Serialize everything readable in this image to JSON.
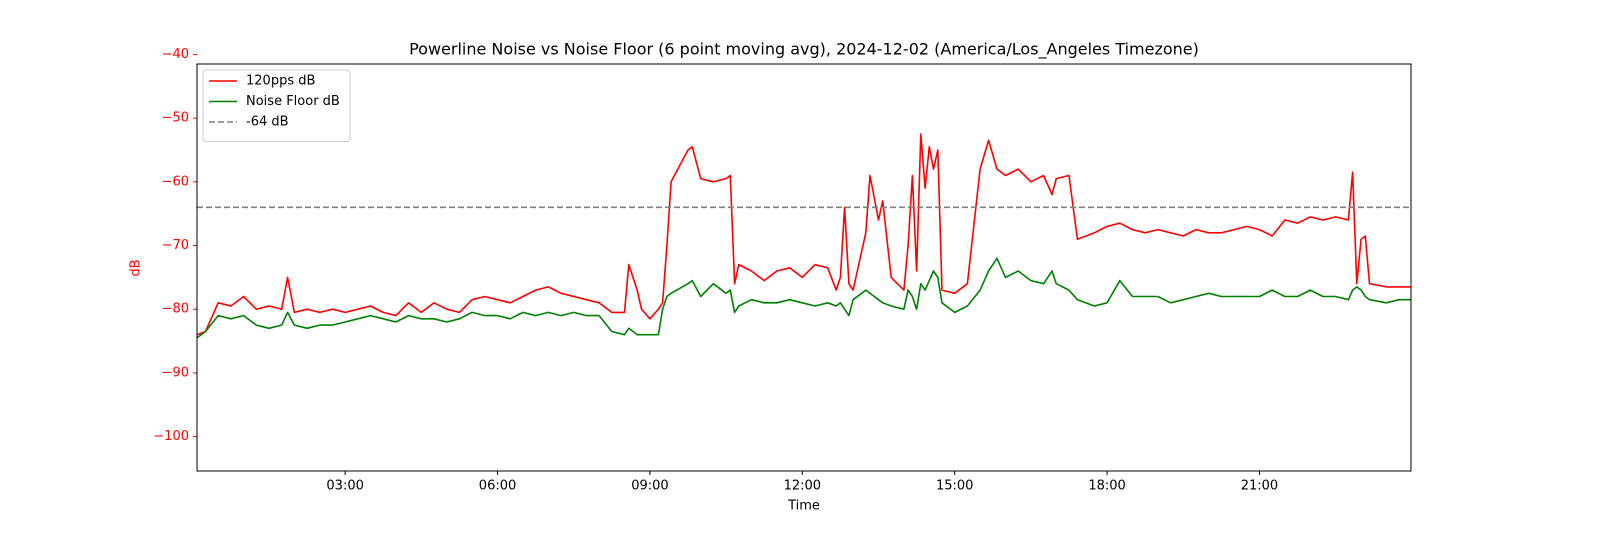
{
  "chart_data": {
    "type": "line",
    "title": "Powerline Noise vs Noise Floor (6 point moving avg), 2024-12-02 (America/Los_Angeles Timezone)",
    "xlabel": "Time",
    "ylabel": "dB",
    "ylabel_color": "#ff0000",
    "x": [
      "00:05",
      "00:15",
      "00:30",
      "00:45",
      "01:00",
      "01:15",
      "01:30",
      "01:45",
      "01:52",
      "02:00",
      "02:15",
      "02:30",
      "02:45",
      "03:00",
      "03:15",
      "03:30",
      "03:45",
      "04:00",
      "04:15",
      "04:30",
      "04:45",
      "05:00",
      "05:15",
      "05:30",
      "05:45",
      "06:00",
      "06:15",
      "06:30",
      "06:45",
      "07:00",
      "07:15",
      "07:30",
      "07:45",
      "08:00",
      "08:15",
      "08:30",
      "08:35",
      "08:45",
      "08:50",
      "09:00",
      "09:10",
      "09:15",
      "09:20",
      "09:25",
      "09:45",
      "09:50",
      "10:00",
      "10:15",
      "10:30",
      "10:35",
      "10:40",
      "10:45",
      "11:00",
      "11:15",
      "11:30",
      "11:45",
      "12:00",
      "12:15",
      "12:30",
      "12:40",
      "12:45",
      "12:50",
      "12:55",
      "13:00",
      "13:15",
      "13:20",
      "13:30",
      "13:35",
      "13:45",
      "14:00",
      "14:05",
      "14:10",
      "14:15",
      "14:20",
      "14:25",
      "14:30",
      "14:35",
      "14:40",
      "14:45",
      "15:00",
      "15:15",
      "15:30",
      "15:40",
      "15:50",
      "16:00",
      "16:15",
      "16:30",
      "16:45",
      "16:55",
      "17:00",
      "17:15",
      "17:25",
      "17:45",
      "18:00",
      "18:15",
      "18:30",
      "18:45",
      "19:00",
      "19:15",
      "19:30",
      "19:45",
      "20:00",
      "20:15",
      "20:30",
      "20:45",
      "21:00",
      "21:15",
      "21:30",
      "21:45",
      "22:00",
      "22:15",
      "22:30",
      "22:45",
      "22:50",
      "22:55",
      "23:00",
      "23:05",
      "23:10",
      "23:30",
      "23:45",
      "23:59"
    ],
    "series": [
      {
        "name": "120pps dB",
        "color": "#ff0000",
        "values": [
          -84,
          -83.5,
          -79,
          -79.5,
          -78,
          -80,
          -79.5,
          -80,
          -75,
          -80.5,
          -80,
          -80.5,
          -80,
          -80.5,
          -80,
          -79.5,
          -80.5,
          -81,
          -79,
          -80.5,
          -79,
          -80,
          -80.5,
          -78.5,
          -78,
          -78.5,
          -79,
          -78,
          -77,
          -76.5,
          -77.5,
          -78,
          -78.5,
          -79,
          -80.5,
          -80.5,
          -73,
          -77,
          -80,
          -81.5,
          -80,
          -79,
          -70,
          -60,
          -55,
          -54.5,
          -59.5,
          -60,
          -59.5,
          -59,
          -76,
          -73,
          -74,
          -75.5,
          -74,
          -73.5,
          -75,
          -73,
          -73.5,
          -77,
          -75,
          -64,
          -76,
          -77,
          -68,
          -59,
          -66,
          -63,
          -75,
          -77,
          -70,
          -59,
          -74,
          -52.5,
          -61,
          -54.5,
          -58,
          -55,
          -77,
          -77.5,
          -76,
          -58,
          -53.5,
          -58,
          -59,
          -58,
          -60,
          -59,
          -62,
          -59.5,
          -59,
          -69,
          -68,
          -67,
          -66.5,
          -67.5,
          -68,
          -67.5,
          -68,
          -68.5,
          -67.5,
          -68,
          -68,
          -67.5,
          -67,
          -67.5,
          -68.5,
          -66,
          -66.5,
          -65.5,
          -66,
          -65.5,
          -66,
          -58.5,
          -76,
          -69,
          -68.5,
          -76,
          -76.5,
          -76.5,
          -76.5
        ]
      },
      {
        "name": "Noise Floor dB",
        "color": "#008000",
        "values": [
          -84.5,
          -83.5,
          -81,
          -81.5,
          -81,
          -82.5,
          -83,
          -82.5,
          -80.5,
          -82.5,
          -83,
          -82.5,
          -82.5,
          -82,
          -81.5,
          -81,
          -81.5,
          -82,
          -81,
          -81.5,
          -81.5,
          -82,
          -81.5,
          -80.5,
          -81,
          -81,
          -81.5,
          -80.5,
          -81,
          -80.5,
          -81,
          -80.5,
          -81,
          -81,
          -83.5,
          -84,
          -83,
          -84,
          -84,
          -84,
          -84,
          -80,
          -78,
          -77.5,
          -76,
          -75.5,
          -78,
          -76,
          -77.5,
          -77,
          -80.5,
          -79.5,
          -78.5,
          -79,
          -79,
          -78.5,
          -79,
          -79.5,
          -79,
          -79.5,
          -79,
          -80,
          -81,
          -78.5,
          -77,
          -77.5,
          -78.5,
          -79,
          -79.5,
          -80,
          -77,
          -78,
          -80,
          -76,
          -77,
          -75.5,
          -74,
          -75,
          -79,
          -80.5,
          -79.5,
          -77,
          -74,
          -72,
          -75,
          -74,
          -75.5,
          -76,
          -74,
          -76,
          -77,
          -78.5,
          -79.5,
          -79,
          -75.5,
          -78,
          -78,
          -78,
          -79,
          -78.5,
          -78,
          -77.5,
          -78,
          -78,
          -78,
          -78,
          -77,
          -78,
          -78,
          -77,
          -78,
          -78,
          -78.5,
          -77,
          -76.5,
          -77,
          -78,
          -78.5,
          -79,
          -78.5,
          -78.5
        ]
      }
    ],
    "hline": {
      "name": "-64 dB",
      "value": -64,
      "color": "#808080"
    },
    "xlim": [
      "00:05",
      "23:59"
    ],
    "xticks": [
      "03:00",
      "06:00",
      "09:00",
      "12:00",
      "15:00",
      "18:00",
      "21:00"
    ],
    "ylim": [
      -105.4,
      -41.5
    ],
    "yticks": [
      {
        "value": -100,
        "label": "−100"
      },
      {
        "value": -90,
        "label": "−90"
      },
      {
        "value": -80,
        "label": "−80"
      },
      {
        "value": -70,
        "label": "−70"
      },
      {
        "value": -60,
        "label": "−60"
      },
      {
        "value": -50,
        "label": "−50"
      },
      {
        "value": -40,
        "label": "−40"
      }
    ],
    "ytick_color": "#ff0000",
    "legend": "upper left"
  }
}
